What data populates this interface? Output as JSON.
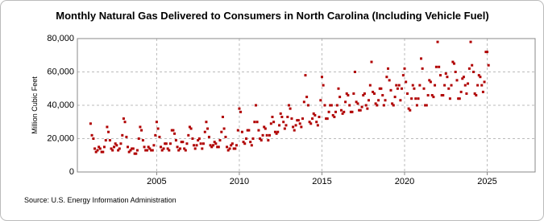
{
  "chart_data": {
    "type": "scatter",
    "title": "Monthly Natural Gas Delivered to Consumers in North Carolina (Including Vehicle Fuel)",
    "y_label": "Million Cubic Feet",
    "source": "Source: U.S. Energy Information Administration",
    "color": "#b00000",
    "grid": true,
    "xlim": [
      2000.2,
      2027.9
    ],
    "xticks": [
      2005,
      2010,
      2015,
      2020,
      2025
    ],
    "ylim": [
      0,
      80000
    ],
    "yticks": [
      0,
      {
        "value": 20000,
        "label": "20,000"
      },
      {
        "value": 40000,
        "label": "40,000"
      },
      {
        "value": 60000,
        "label": "60,000"
      },
      {
        "value": 80000,
        "label": "80,000"
      }
    ],
    "x": [
      2001,
      2001.08,
      2001.17,
      2001.25,
      2001.33,
      2001.42,
      2001.5,
      2001.58,
      2001.67,
      2001.75,
      2001.83,
      2001.92,
      2002,
      2002.08,
      2002.17,
      2002.25,
      2002.33,
      2002.42,
      2002.5,
      2002.58,
      2002.67,
      2002.75,
      2002.83,
      2002.92,
      2003,
      2003.08,
      2003.17,
      2003.25,
      2003.33,
      2003.42,
      2003.5,
      2003.58,
      2003.67,
      2003.75,
      2003.83,
      2003.92,
      2004,
      2004.08,
      2004.17,
      2004.25,
      2004.33,
      2004.42,
      2004.5,
      2004.58,
      2004.67,
      2004.75,
      2004.83,
      2004.92,
      2005,
      2005.08,
      2005.17,
      2005.25,
      2005.33,
      2005.42,
      2005.5,
      2005.58,
      2005.67,
      2005.75,
      2005.83,
      2005.92,
      2006,
      2006.08,
      2006.17,
      2006.25,
      2006.33,
      2006.42,
      2006.5,
      2006.58,
      2006.67,
      2006.75,
      2006.83,
      2006.92,
      2007,
      2007.08,
      2007.17,
      2007.25,
      2007.33,
      2007.42,
      2007.5,
      2007.58,
      2007.67,
      2007.75,
      2007.83,
      2007.92,
      2008,
      2008.08,
      2008.17,
      2008.25,
      2008.33,
      2008.42,
      2008.5,
      2008.58,
      2008.67,
      2008.75,
      2008.83,
      2008.92,
      2009,
      2009.08,
      2009.17,
      2009.25,
      2009.33,
      2009.42,
      2009.5,
      2009.58,
      2009.67,
      2009.75,
      2009.83,
      2009.92,
      2010,
      2010.08,
      2010.17,
      2010.25,
      2010.33,
      2010.42,
      2010.5,
      2010.58,
      2010.67,
      2010.75,
      2010.83,
      2010.92,
      2011,
      2011.08,
      2011.17,
      2011.25,
      2011.33,
      2011.42,
      2011.5,
      2011.58,
      2011.67,
      2011.75,
      2011.83,
      2011.92,
      2012,
      2012.08,
      2012.17,
      2012.25,
      2012.33,
      2012.42,
      2012.5,
      2012.58,
      2012.67,
      2012.75,
      2012.83,
      2012.92,
      2013,
      2013.08,
      2013.17,
      2013.25,
      2013.33,
      2013.42,
      2013.5,
      2013.58,
      2013.67,
      2013.75,
      2013.83,
      2013.92,
      2014,
      2014.08,
      2014.17,
      2014.25,
      2014.33,
      2014.42,
      2014.5,
      2014.58,
      2014.67,
      2014.75,
      2014.83,
      2014.92,
      2015,
      2015.08,
      2015.17,
      2015.25,
      2015.33,
      2015.42,
      2015.5,
      2015.58,
      2015.67,
      2015.75,
      2015.83,
      2015.92,
      2016,
      2016.08,
      2016.17,
      2016.25,
      2016.33,
      2016.42,
      2016.5,
      2016.58,
      2016.67,
      2016.75,
      2016.83,
      2016.92,
      2017,
      2017.08,
      2017.17,
      2017.25,
      2017.33,
      2017.42,
      2017.5,
      2017.58,
      2017.67,
      2017.75,
      2017.83,
      2017.92,
      2018,
      2018.08,
      2018.17,
      2018.25,
      2018.33,
      2018.42,
      2018.5,
      2018.58,
      2018.67,
      2018.75,
      2018.83,
      2018.92,
      2019,
      2019.08,
      2019.17,
      2019.25,
      2019.33,
      2019.42,
      2019.5,
      2019.58,
      2019.67,
      2019.75,
      2019.83,
      2019.92,
      2020,
      2020.08,
      2020.17,
      2020.25,
      2020.33,
      2020.42,
      2020.5,
      2020.58,
      2020.67,
      2020.75,
      2020.83,
      2020.92,
      2021,
      2021.08,
      2021.17,
      2021.25,
      2021.33,
      2021.42,
      2021.5,
      2021.58,
      2021.67,
      2021.75,
      2021.83,
      2021.92,
      2022,
      2022.08,
      2022.17,
      2022.25,
      2022.33,
      2022.42,
      2022.5,
      2022.58,
      2022.67,
      2022.75,
      2022.83,
      2022.92,
      2023,
      2023.08,
      2023.17,
      2023.25,
      2023.33,
      2023.42,
      2023.5,
      2023.58,
      2023.67,
      2023.75,
      2023.83,
      2023.92,
      2024,
      2024.08,
      2024.17,
      2024.25,
      2024.33,
      2024.42,
      2024.5,
      2024.58,
      2024.67,
      2024.75,
      2024.83,
      2024.92,
      2025,
      2025.08
    ],
    "values": [
      29000,
      22000,
      20000,
      14000,
      12000,
      13000,
      15000,
      14000,
      12000,
      12000,
      15000,
      19000,
      27000,
      24000,
      19000,
      14000,
      13000,
      15000,
      17000,
      16000,
      13000,
      14000,
      17000,
      22000,
      32000,
      30000,
      21000,
      15000,
      12000,
      13000,
      14000,
      14000,
      11000,
      11000,
      13000,
      20000,
      27000,
      25000,
      19000,
      15000,
      13000,
      13000,
      15000,
      14000,
      13000,
      13000,
      16000,
      22000,
      30000,
      26000,
      21000,
      15000,
      13000,
      14000,
      17000,
      17000,
      14000,
      13000,
      17000,
      25000,
      25000,
      23000,
      19000,
      15000,
      13000,
      14000,
      18000,
      18000,
      14000,
      13000,
      17000,
      22000,
      27000,
      26000,
      20000,
      16000,
      14000,
      16000,
      19000,
      20000,
      17000,
      14000,
      17000,
      24000,
      30000,
      26000,
      21000,
      16000,
      15000,
      16000,
      18000,
      17000,
      15000,
      15000,
      19000,
      24000,
      33000,
      26000,
      21000,
      15000,
      13000,
      14000,
      16000,
      17000,
      14000,
      14000,
      16000,
      25000,
      38000,
      36000,
      24000,
      18000,
      17000,
      20000,
      25000,
      25000,
      18000,
      16000,
      20000,
      30000,
      40000,
      30000,
      25000,
      20000,
      19000,
      22000,
      27000,
      26000,
      22000,
      19000,
      22000,
      29000,
      33000,
      30000,
      24000,
      23000,
      24000,
      28000,
      35000,
      33000,
      30000,
      26000,
      28000,
      33000,
      40000,
      38000,
      32000,
      27000,
      25000,
      28000,
      31000,
      31000,
      29000,
      27000,
      32000,
      42000,
      58000,
      45000,
      40000,
      30000,
      29000,
      32000,
      35000,
      34000,
      30000,
      28000,
      33000,
      43000,
      57000,
      52000,
      40000,
      32000,
      32000,
      36000,
      40000,
      40000,
      34000,
      33000,
      36000,
      40000,
      50000,
      45000,
      37000,
      35000,
      36000,
      42000,
      47000,
      46000,
      40000,
      36000,
      36000,
      47000,
      60000,
      42000,
      41000,
      37000,
      37000,
      39000,
      46000,
      47000,
      40000,
      38000,
      43000,
      52000,
      66000,
      48000,
      47000,
      41000,
      40000,
      43000,
      50000,
      50000,
      46000,
      40000,
      43000,
      57000,
      62000,
      55000,
      49000,
      41000,
      40000,
      45000,
      52000,
      50000,
      52000,
      43000,
      50000,
      58000,
      62000,
      54000,
      47000,
      38000,
      37000,
      44000,
      52000,
      50000,
      44000,
      40000,
      44000,
      52000,
      68000,
      62000,
      50000,
      40000,
      40000,
      46000,
      55000,
      54000,
      46000,
      45000,
      52000,
      63000,
      78000,
      63000,
      58000,
      46000,
      46000,
      52000,
      59000,
      57000,
      50000,
      44000,
      52000,
      66000,
      65000,
      60000,
      55000,
      44000,
      44000,
      48000,
      56000,
      57000,
      52000,
      47000,
      53000,
      62000,
      78000,
      64000,
      60000,
      47000,
      46000,
      52000,
      58000,
      57000,
      52000,
      48000,
      54000,
      72000,
      72000,
      64000
    ]
  }
}
